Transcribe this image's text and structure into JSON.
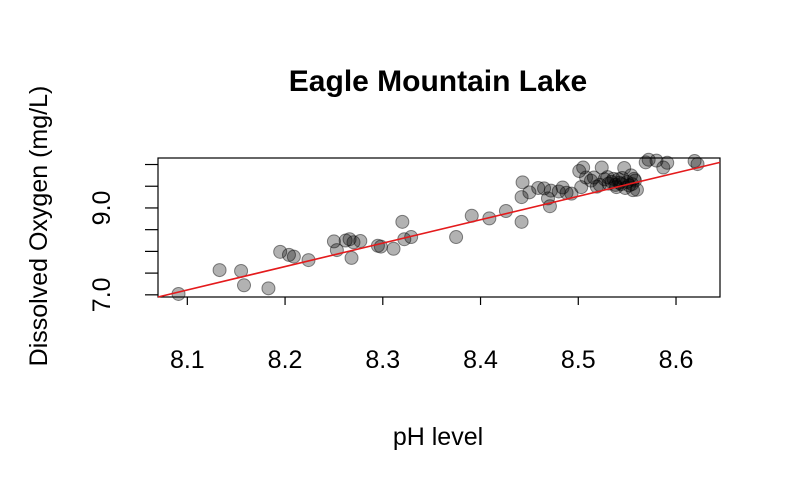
{
  "chart_data": {
    "type": "scatter",
    "title": "Eagle Mountain Lake",
    "xlabel": "pH level",
    "ylabel": "Dissolved Oxygen (mg/L)",
    "xlim": [
      8.07,
      8.645
    ],
    "ylim": [
      6.95,
      10.15
    ],
    "x_ticks": [
      "8.1",
      "8.2",
      "8.3",
      "8.4",
      "8.5",
      "8.6"
    ],
    "y_ticks": [
      7.0,
      7.5,
      8.0,
      8.5,
      9.0,
      9.5,
      10.0
    ],
    "y_tick_labels": [
      "7.0",
      "9.0"
    ],
    "grid": false,
    "point_color": "#000000",
    "point_opacity": 0.3,
    "line_color": "#e41a1c",
    "regression_line": {
      "x": [
        8.07,
        8.645
      ],
      "y": [
        6.95,
        10.05
      ]
    },
    "points": [
      [
        8.091,
        7.02
      ],
      [
        8.133,
        7.57
      ],
      [
        8.155,
        7.55
      ],
      [
        8.158,
        7.22
      ],
      [
        8.183,
        7.15
      ],
      [
        8.195,
        7.99
      ],
      [
        8.204,
        7.92
      ],
      [
        8.209,
        7.88
      ],
      [
        8.224,
        7.8
      ],
      [
        8.25,
        8.23
      ],
      [
        8.253,
        8.03
      ],
      [
        8.262,
        8.25
      ],
      [
        8.266,
        8.28
      ],
      [
        8.27,
        8.21
      ],
      [
        8.268,
        7.85
      ],
      [
        8.277,
        8.24
      ],
      [
        8.295,
        8.13
      ],
      [
        8.298,
        8.11
      ],
      [
        8.311,
        8.06
      ],
      [
        8.32,
        8.68
      ],
      [
        8.322,
        8.28
      ],
      [
        8.329,
        8.33
      ],
      [
        8.375,
        8.33
      ],
      [
        8.391,
        8.82
      ],
      [
        8.409,
        8.76
      ],
      [
        8.426,
        8.93
      ],
      [
        8.442,
        8.68
      ],
      [
        8.443,
        9.59
      ],
      [
        8.442,
        9.25
      ],
      [
        8.45,
        9.36
      ],
      [
        8.459,
        9.46
      ],
      [
        8.465,
        9.45
      ],
      [
        8.469,
        9.22
      ],
      [
        8.471,
        9.04
      ],
      [
        8.472,
        9.4
      ],
      [
        8.48,
        9.38
      ],
      [
        8.484,
        9.47
      ],
      [
        8.488,
        9.35
      ],
      [
        8.493,
        9.33
      ],
      [
        8.501,
        9.85
      ],
      [
        8.503,
        9.48
      ],
      [
        8.505,
        9.93
      ],
      [
        8.508,
        9.7
      ],
      [
        8.513,
        9.63
      ],
      [
        8.516,
        9.7
      ],
      [
        8.519,
        9.49
      ],
      [
        8.522,
        9.53
      ],
      [
        8.524,
        9.93
      ],
      [
        8.527,
        9.66
      ],
      [
        8.53,
        9.71
      ],
      [
        8.531,
        9.56
      ],
      [
        8.534,
        9.6
      ],
      [
        8.536,
        9.67
      ],
      [
        8.538,
        9.53
      ],
      [
        8.539,
        9.48
      ],
      [
        8.541,
        9.66
      ],
      [
        8.542,
        9.58
      ],
      [
        8.544,
        9.55
      ],
      [
        8.545,
        9.69
      ],
      [
        8.547,
        9.92
      ],
      [
        8.548,
        9.46
      ],
      [
        8.55,
        9.6
      ],
      [
        8.552,
        9.52
      ],
      [
        8.554,
        9.75
      ],
      [
        8.555,
        9.55
      ],
      [
        8.556,
        9.41
      ],
      [
        8.557,
        9.67
      ],
      [
        8.558,
        9.63
      ],
      [
        8.56,
        9.42
      ],
      [
        8.569,
        10.05
      ],
      [
        8.572,
        10.11
      ],
      [
        8.58,
        10.09
      ],
      [
        8.587,
        9.93
      ],
      [
        8.591,
        10.04
      ],
      [
        8.619,
        10.08
      ],
      [
        8.622,
        10.01
      ]
    ]
  }
}
